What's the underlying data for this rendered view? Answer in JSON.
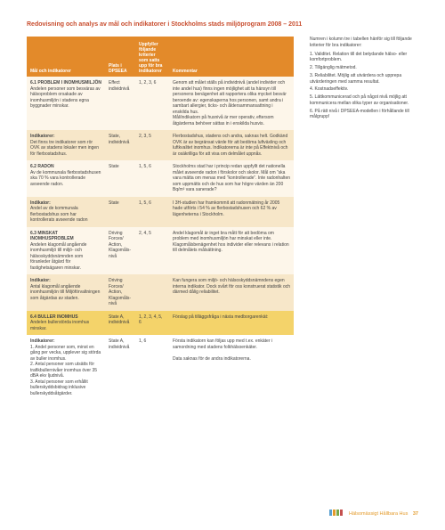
{
  "title": "Redovisning och analys av mål och indikatorer i Stockholms stads miljöprogram 2008 – 2011",
  "header": {
    "col1": "Mål och indikatorer",
    "col2": "Plats i DPSEEA",
    "col3": "Uppfyller följande kriterier som satts upp för bra indikatorer",
    "col4": "Kommentar"
  },
  "rows": [
    {
      "cls": "light",
      "c1_title": "6.1 PROBLEM I INOMHUSMILJÖN",
      "c1_body": "Andelen personer som besväras av hälsoproblem orsakade av inomhusmiljön i stadens egna byggnader minskar.",
      "c2": "Effect individnivå",
      "c3": "1, 2, 3, 6",
      "c4": "Genom att målet ställs på individnivå (andel individer och inte andel hus) finns ingen möjlighet att ta hänsyn till personens benägenhet att rapportera olika mycket besvär beroende av: egenskaperna hos personen, samt andra i sambart allergier, ticks- och åldersammansattning i enskilda hus.\nMål/indikatorn på husnivå är mer operativ, eftersom åtgärderna behöver sättas in i enskilda husvis."
    },
    {
      "cls": "dark",
      "c1_title": "Indikatorer:",
      "c1_body": "Det finns tre indikatorer som rör OVK av stadens lokaler men ingen för flerbostadshus.",
      "c2": "State, individnivå",
      "c3": "2, 3, 5",
      "c4": "Flerbostadshus, stadens och andra, saknas helt. Godkänd OVK är av begränsat värde för att bedöma luftväxling och luftkvalitet inomhus. Indikatorerna är inte på Effektnivå och är osäkrilliga för att visa om delmålet uppnås."
    },
    {
      "cls": "light",
      "c1_title": "6.2 RADON",
      "c1_body": "Av de kommunala flerbostadshusen ska 70 % vara kontrollerade avseende radon.",
      "c2": "State",
      "c3": "1, 5, 6",
      "c4": "Stockholms stad har i princip redan uppfyllt det nationella målet avseende radon i förskolor och skolor. Mål om ”ska vara mätta om menas med ”kontrollerade”. Inte radonhalten som uppmätts och de hus som har högre värden än 200 Bq/m³ vara sanerade?"
    },
    {
      "cls": "dark",
      "c1_title": "Indikator:",
      "c1_body": "Andel av de kommunala flerbostadshus som har kontrollerats avseende radon",
      "c2": "State",
      "c3": "1, 5, 6",
      "c4": "I 3H-studien har framkommit att radonmätning år 2005 hade utförts i 54 % av flerbostadshusen och 62 % av lägenheterna i Stockholm."
    },
    {
      "cls": "light",
      "c1_title": "6.3 MINSKAT INOMHUSPROBLEM",
      "c1_body": "Andelen klagomål angående inomhusmiljö till miljö- och hälsoskyddsnämnden som föranleder åtgärd för fastighetsägaren minskar.",
      "c2": "Driving Forces/ Action, Klagomåls-nivå",
      "c3": "2, 4, 5",
      "c4": "Andel klagomål är inget bra mått för att bedöma om problem med inomhusmiljön har minskat eller inte. Klagomålsbenägenhet hos individer eller relevans i relation till delmålets målsättning."
    },
    {
      "cls": "dark",
      "c1_title": "Indikator:",
      "c1_body": "Antal klagomål angående inomhusmiljön till Miljöförvaltningen som åtgärdas av staden.",
      "c2": "Driving Forces/ Action, Klagomåls-nivå",
      "c3": "",
      "c4": "Kan fungera som miljö- och hälsoskyddsnämndens egen interna indikator. Dock svårt för oss konstruerat statistik och därmed dålig reliabilitet."
    },
    {
      "cls": "yellow",
      "c1_title": "6.4 BULLER INOMHUS",
      "c1_body": "Andelen bullerstörda inomhus minskar.",
      "c2": "State A, individnivå",
      "c3": "1, 2, 3, 4, 5, 6",
      "c4": "Förslag på tilläggsfråga i nästa medborgarenkät:"
    },
    {
      "cls": "white",
      "c1_title": "Indikatorer:",
      "c1_body": "1. Andel personer som, minst en gång per vecka, upplever sig störda av buller inomhus.\n2. Antal personer som utsätts för trafikbullernivåer inomhus över 35 dBA ekv ljudnivå.\n3. Antal personer som erhållit bullerskyddsbidrag inklusive bullerskyddsåtgärder.",
      "c2": "State A, individnivå",
      "c3": "1, 6",
      "c4": "Första indikatorn kan följas upp med t.ex. enkäter i samordning med stadens folkhälsoenkäter.\n\nData saknas för de andra indikatorerna."
    }
  ],
  "side": {
    "lead": "Numren i kolumn tre i tabellen hänför sig till följande kriterier för bra indikatorer:",
    "items": [
      "1. Validitet. Relation till det betydande hälso- eller komfortproblem.",
      "2. Tillgänglig mätmetod.",
      "3. Reliabilitet. Möjlig att utvärdera och upprepa utvärderingen med samma resultat.",
      "4. Kostnadseffektiv.",
      "5. Lättkommunicerad och på något nivå möjlig att kommunicera mellan olika typer av organisationer.",
      "6. På rätt nivå i DPSEEA-modellen i förhållande till målgrupp!"
    ]
  },
  "footer": {
    "brand": "Hälsomässigt Hållbara Hus",
    "page": "37",
    "logo_colors": [
      "#5aa0d0",
      "#e39a2a",
      "#7aa84a",
      "#c4504f"
    ]
  }
}
